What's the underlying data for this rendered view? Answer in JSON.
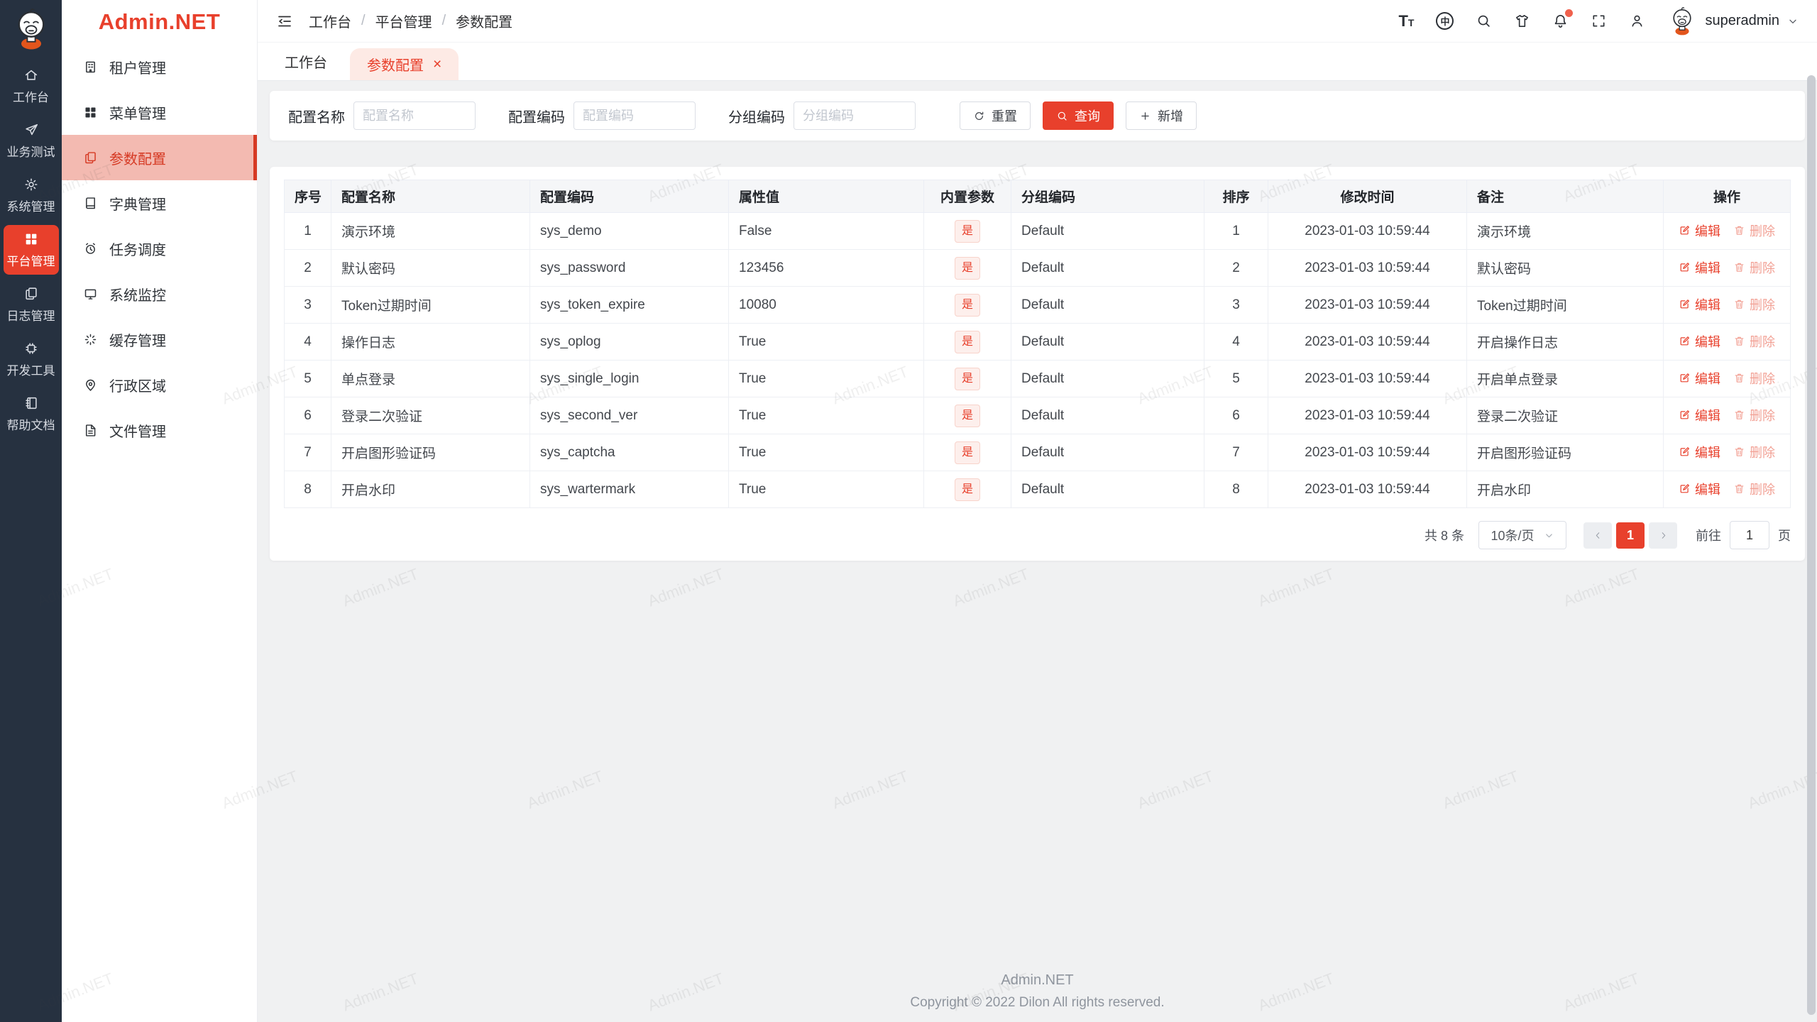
{
  "app": {
    "name": "Admin.NET",
    "watermark": "Admin.NET"
  },
  "colors": {
    "primary": "#e8402c",
    "rail_bg": "#263140",
    "active_menu_bg": "#f3bab1",
    "active_tab_bg": "#fdeae5",
    "tag_bg": "#fdefec",
    "content_bg": "#f0f1f2"
  },
  "rail": {
    "items": [
      {
        "label": "工作台",
        "icon": "home",
        "active": false
      },
      {
        "label": "业务测试",
        "icon": "send",
        "active": false
      },
      {
        "label": "系统管理",
        "icon": "gear",
        "active": false
      },
      {
        "label": "平台管理",
        "icon": "grid",
        "active": true
      },
      {
        "label": "日志管理",
        "icon": "copy",
        "active": false
      },
      {
        "label": "开发工具",
        "icon": "chip",
        "active": false
      },
      {
        "label": "帮助文档",
        "icon": "notebook",
        "active": false
      }
    ]
  },
  "sidebar": {
    "items": [
      {
        "label": "租户管理",
        "icon": "building",
        "active": false
      },
      {
        "label": "菜单管理",
        "icon": "grid",
        "active": false
      },
      {
        "label": "参数配置",
        "icon": "copy",
        "active": true
      },
      {
        "label": "字典管理",
        "icon": "book",
        "active": false
      },
      {
        "label": "任务调度",
        "icon": "alarm",
        "active": false
      },
      {
        "label": "系统监控",
        "icon": "monitor",
        "active": false
      },
      {
        "label": "缓存管理",
        "icon": "spinner",
        "active": false
      },
      {
        "label": "行政区域",
        "icon": "pin",
        "active": false
      },
      {
        "label": "文件管理",
        "icon": "file",
        "active": false
      }
    ]
  },
  "header": {
    "breadcrumb": [
      "工作台",
      "平台管理",
      "参数配置"
    ],
    "icons": [
      {
        "name": "font-size",
        "glyph": "TT"
      },
      {
        "name": "language",
        "glyph": "中"
      },
      {
        "name": "search"
      },
      {
        "name": "theme"
      },
      {
        "name": "notification",
        "badge": true
      },
      {
        "name": "fullscreen"
      },
      {
        "name": "profile"
      }
    ],
    "user": "superadmin"
  },
  "tabs": [
    {
      "label": "工作台",
      "active": false,
      "closable": false
    },
    {
      "label": "参数配置",
      "active": true,
      "closable": true,
      "close_glyph": "×"
    }
  ],
  "filters": {
    "fields": [
      {
        "label": "配置名称",
        "placeholder": "配置名称",
        "value": ""
      },
      {
        "label": "配置编码",
        "placeholder": "配置编码",
        "value": ""
      },
      {
        "label": "分组编码",
        "placeholder": "分组编码",
        "value": ""
      }
    ],
    "buttons": {
      "reset": "重置",
      "search": "查询",
      "add": "新增"
    }
  },
  "table": {
    "columns": [
      {
        "key": "index",
        "label": "序号"
      },
      {
        "key": "name",
        "label": "配置名称"
      },
      {
        "key": "code",
        "label": "配置编码"
      },
      {
        "key": "value",
        "label": "属性值"
      },
      {
        "key": "builtin",
        "label": "内置参数"
      },
      {
        "key": "group",
        "label": "分组编码"
      },
      {
        "key": "sort",
        "label": "排序"
      },
      {
        "key": "time",
        "label": "修改时间"
      },
      {
        "key": "remark",
        "label": "备注"
      },
      {
        "key": "ops",
        "label": "操作"
      }
    ],
    "rows": [
      {
        "index": "1",
        "name": "演示环境",
        "code": "sys_demo",
        "value": "False",
        "builtin": "是",
        "group": "Default",
        "sort": "1",
        "time": "2023-01-03 10:59:44",
        "remark": "演示环境"
      },
      {
        "index": "2",
        "name": "默认密码",
        "code": "sys_password",
        "value": "123456",
        "builtin": "是",
        "group": "Default",
        "sort": "2",
        "time": "2023-01-03 10:59:44",
        "remark": "默认密码"
      },
      {
        "index": "3",
        "name": "Token过期时间",
        "code": "sys_token_expire",
        "value": "10080",
        "builtin": "是",
        "group": "Default",
        "sort": "3",
        "time": "2023-01-03 10:59:44",
        "remark": "Token过期时间"
      },
      {
        "index": "4",
        "name": "操作日志",
        "code": "sys_oplog",
        "value": "True",
        "builtin": "是",
        "group": "Default",
        "sort": "4",
        "time": "2023-01-03 10:59:44",
        "remark": "开启操作日志"
      },
      {
        "index": "5",
        "name": "单点登录",
        "code": "sys_single_login",
        "value": "True",
        "builtin": "是",
        "group": "Default",
        "sort": "5",
        "time": "2023-01-03 10:59:44",
        "remark": "开启单点登录"
      },
      {
        "index": "6",
        "name": "登录二次验证",
        "code": "sys_second_ver",
        "value": "True",
        "builtin": "是",
        "group": "Default",
        "sort": "6",
        "time": "2023-01-03 10:59:44",
        "remark": "登录二次验证"
      },
      {
        "index": "7",
        "name": "开启图形验证码",
        "code": "sys_captcha",
        "value": "True",
        "builtin": "是",
        "group": "Default",
        "sort": "7",
        "time": "2023-01-03 10:59:44",
        "remark": "开启图形验证码"
      },
      {
        "index": "8",
        "name": "开启水印",
        "code": "sys_wartermark",
        "value": "True",
        "builtin": "是",
        "group": "Default",
        "sort": "8",
        "time": "2023-01-03 10:59:44",
        "remark": "开启水印"
      }
    ],
    "actions": {
      "edit": "编辑",
      "delete": "删除"
    }
  },
  "pagination": {
    "total": "共 8 条",
    "page_size": "10条/页",
    "current": "1",
    "goto_label": "前往",
    "goto_value": "1",
    "goto_suffix": "页"
  },
  "footer": {
    "line1": "Admin.NET",
    "line2": "Copyright © 2022 Dilon All rights reserved."
  }
}
